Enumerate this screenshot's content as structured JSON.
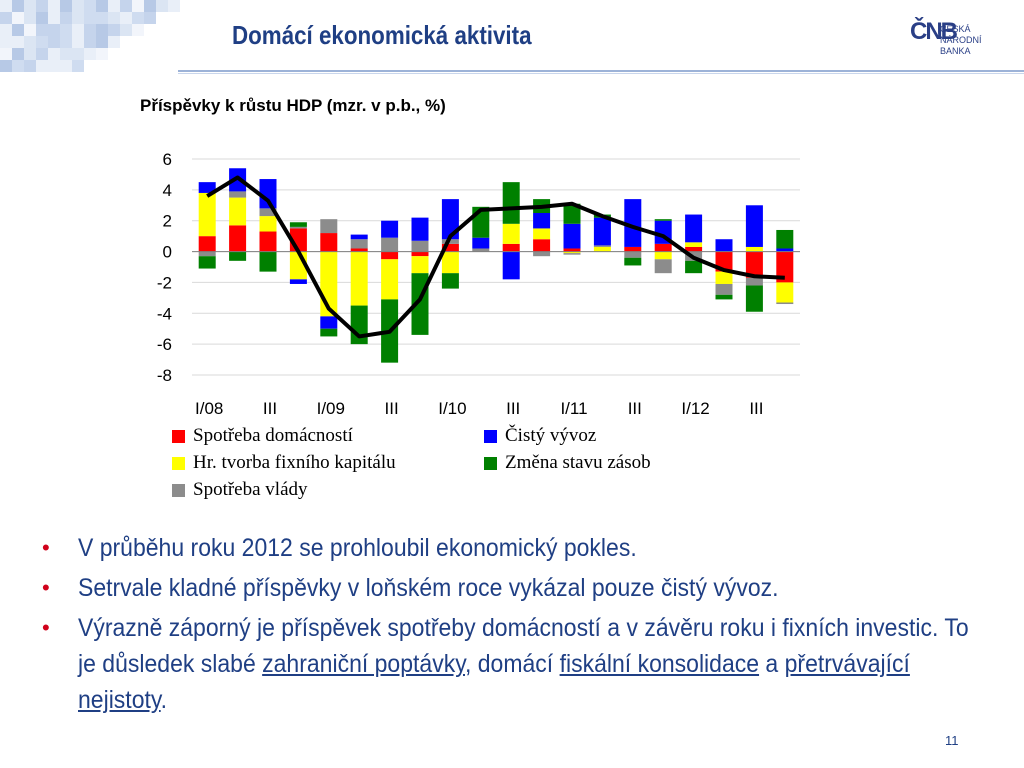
{
  "slide": {
    "title": "Domácí ekonomická aktivita",
    "page_number": "11"
  },
  "logo": {
    "mark": "ČNB",
    "line1": "ČESKÁ",
    "line2": "NÁRODNÍ BANKA"
  },
  "colors": {
    "household": "#ff0000",
    "investment": "#ffff00",
    "government": "#8c8c8c",
    "net_exports": "#0000ff",
    "inventories": "#008000",
    "gdp_line": "#000000",
    "title_blue": "#1f3f84",
    "bullet_red": "#d0021b"
  },
  "chart_data": {
    "type": "bar",
    "title": "Příspěvky k růstu HDP (mzr. v p.b., %)",
    "stacked": true,
    "ylim": [
      -8,
      6
    ],
    "yticks": [
      "6",
      "4",
      "2",
      "0",
      "-2",
      "-4",
      "-6",
      "-8"
    ],
    "ytick_values": [
      6,
      4,
      2,
      0,
      -2,
      -4,
      -6,
      -8
    ],
    "grid": true,
    "xtick_labels": [
      "I/08",
      "III",
      "I/09",
      "III",
      "I/10",
      "III",
      "I/11",
      "III",
      "I/12",
      "III"
    ],
    "categories": [
      "I/08",
      "II/08",
      "III/08",
      "IV/08",
      "I/09",
      "II/09",
      "III/09",
      "IV/09",
      "I/10",
      "II/10",
      "III/10",
      "IV/10",
      "I/11",
      "II/11",
      "III/11",
      "IV/11",
      "I/12",
      "II/12",
      "III/12",
      "IV/12"
    ],
    "series": [
      {
        "name": "Spotřeba domácností",
        "key": "household",
        "values": [
          1.0,
          1.7,
          1.3,
          1.5,
          1.2,
          0.2,
          -0.5,
          -0.3,
          0.5,
          0.0,
          0.5,
          0.8,
          0.2,
          0.0,
          0.3,
          0.5,
          0.3,
          -1.3,
          -1.7,
          -2.0
        ]
      },
      {
        "name": "Hr. tvorba fixního kapitálu",
        "key": "investment",
        "values": [
          2.8,
          1.8,
          1.0,
          -1.8,
          -4.2,
          -3.5,
          -2.6,
          -1.1,
          -1.4,
          0.0,
          1.3,
          0.7,
          -0.1,
          0.3,
          0.0,
          -0.5,
          0.3,
          -0.8,
          0.3,
          -1.3
        ]
      },
      {
        "name": "Spotřeba vlády",
        "key": "government",
        "values": [
          -0.3,
          0.4,
          0.5,
          0.1,
          0.9,
          0.6,
          0.9,
          0.7,
          0.3,
          0.2,
          0.0,
          -0.3,
          -0.1,
          0.1,
          -0.4,
          -0.9,
          -0.6,
          -0.7,
          -0.5,
          -0.1
        ]
      },
      {
        "name": "Čistý vývoz",
        "key": "net_exports",
        "values": [
          0.7,
          1.5,
          1.9,
          -0.3,
          -0.8,
          0.3,
          1.1,
          1.5,
          2.6,
          0.7,
          -1.8,
          1.0,
          1.6,
          1.8,
          3.1,
          1.5,
          1.8,
          0.8,
          2.7,
          0.2
        ]
      },
      {
        "name": "Změna stavu zásob",
        "key": "inventories",
        "values": [
          -0.8,
          -0.6,
          -1.3,
          0.3,
          -0.5,
          -2.5,
          -4.1,
          -4.0,
          -1.0,
          2.0,
          2.7,
          0.9,
          1.3,
          0.2,
          -0.5,
          0.1,
          -0.8,
          -0.3,
          -1.7,
          1.2
        ]
      }
    ],
    "gdp_line": {
      "name": "HDP",
      "values": [
        3.6,
        4.8,
        3.3,
        0.0,
        -3.7,
        -5.5,
        -5.2,
        -3.1,
        1.0,
        2.7,
        2.8,
        2.9,
        3.1,
        2.3,
        1.6,
        1.0,
        -0.4,
        -1.2,
        -1.6,
        -1.7
      ]
    }
  },
  "legend": {
    "items": [
      {
        "label": "Spotřeba domácností",
        "key": "household"
      },
      {
        "label": "Čistý vývoz",
        "key": "net_exports"
      },
      {
        "label": "Hr. tvorba fixního kapitálu",
        "key": "investment"
      },
      {
        "label": "Změna stavu zásob",
        "key": "inventories"
      },
      {
        "label": "Spotřeba vlády",
        "key": "government"
      }
    ]
  },
  "bullets": {
    "b1": "V průběhu roku 2012 se prohloubil ekonomický pokles.",
    "b2": "Setrvale kladné příspěvky v loňském roce vykázal pouze čistý vývoz.",
    "b3_part1": "Výrazně záporný je příspěvek spotřeby domácností a v závěru roku i fixních investic. To je důsledek slabé ",
    "b3_link1": "zahraniční poptávky",
    "b3_part2": ", domácí ",
    "b3_link2": "fiskální konsolidace",
    "b3_part3": " a ",
    "b3_link3": "přetrvávající nejistoty",
    "b3_part4": "."
  }
}
